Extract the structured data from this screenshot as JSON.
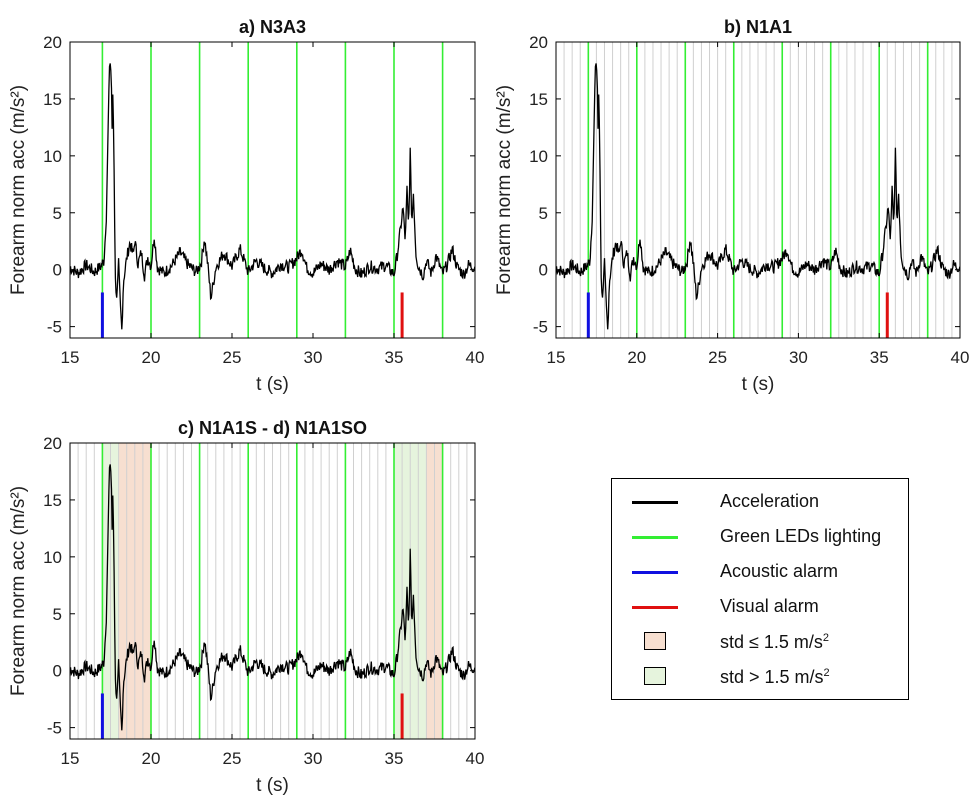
{
  "chart_data": [
    {
      "type": "line",
      "title": "a) N3A3",
      "xlabel": "t (s)",
      "ylabel": "Forearm norm acc (m/s²)",
      "xlim": [
        15,
        40
      ],
      "ylim": [
        -6,
        20
      ],
      "xticks": [
        15,
        20,
        25,
        30,
        35,
        40
      ],
      "yticks": [
        -5,
        0,
        5,
        10,
        15,
        20
      ],
      "green_led_times": [
        17,
        20,
        23,
        26,
        29,
        32,
        35,
        38
      ],
      "grey_lines": false,
      "acoustic_alarm_time": 17,
      "visual_alarm_time": 35.5,
      "shaded_regions": []
    },
    {
      "type": "line",
      "title": "b) N1A1",
      "xlabel": "t (s)",
      "ylabel": "Forearm norm acc (m/s²)",
      "xlim": [
        15,
        40
      ],
      "ylim": [
        -6,
        20
      ],
      "xticks": [
        15,
        20,
        25,
        30,
        35,
        40
      ],
      "yticks": [
        -5,
        0,
        5,
        10,
        15,
        20
      ],
      "green_led_times": [
        17,
        20,
        23,
        26,
        29,
        32,
        35,
        38
      ],
      "grey_lines": true,
      "acoustic_alarm_time": 17,
      "visual_alarm_time": 35.5,
      "shaded_regions": []
    },
    {
      "type": "line",
      "title": "c) N1A1S - d) N1A1SO",
      "xlabel": "t (s)",
      "ylabel": "Forearm norm acc (m/s²)",
      "xlim": [
        15,
        40
      ],
      "ylim": [
        -6,
        20
      ],
      "xticks": [
        15,
        20,
        25,
        30,
        35,
        40
      ],
      "yticks": [
        -5,
        0,
        5,
        10,
        15,
        20
      ],
      "green_led_times": [
        17,
        20,
        23,
        26,
        29,
        32,
        35,
        38
      ],
      "grey_lines": true,
      "acoustic_alarm_time": 17,
      "visual_alarm_time": 35.5,
      "shaded_regions": [
        {
          "x0": 17,
          "x1": 18,
          "kind": "green"
        },
        {
          "x0": 18,
          "x1": 20,
          "kind": "orange"
        },
        {
          "x0": 35,
          "x1": 37,
          "kind": "green"
        },
        {
          "x0": 37,
          "x1": 38,
          "kind": "orange"
        }
      ]
    }
  ],
  "acceleration_keypoints": [
    [
      15,
      0.2
    ],
    [
      15.5,
      -0.3
    ],
    [
      16,
      0.4
    ],
    [
      16.5,
      -0.2
    ],
    [
      16.9,
      0.3
    ],
    [
      17.1,
      0.8
    ],
    [
      17.25,
      5
    ],
    [
      17.35,
      12
    ],
    [
      17.45,
      18.7
    ],
    [
      17.55,
      17
    ],
    [
      17.6,
      12
    ],
    [
      17.65,
      16.3
    ],
    [
      17.72,
      9
    ],
    [
      17.8,
      -1
    ],
    [
      17.9,
      -2.5
    ],
    [
      18.0,
      0.5
    ],
    [
      18.1,
      -3
    ],
    [
      18.2,
      -5.3
    ],
    [
      18.3,
      -1
    ],
    [
      18.5,
      1
    ],
    [
      18.7,
      2.4
    ],
    [
      18.9,
      1.2
    ],
    [
      19.0,
      2.6
    ],
    [
      19.2,
      0.5
    ],
    [
      19.4,
      1.5
    ],
    [
      19.6,
      -0.5
    ],
    [
      19.8,
      1.1
    ],
    [
      20.0,
      0.3
    ],
    [
      20.2,
      3.0
    ],
    [
      20.4,
      0.2
    ],
    [
      20.8,
      -0.3
    ],
    [
      21.3,
      0.4
    ],
    [
      21.8,
      1.5
    ],
    [
      22.3,
      0.4
    ],
    [
      22.8,
      -0.2
    ],
    [
      23.1,
      0.6
    ],
    [
      23.3,
      2.8
    ],
    [
      23.5,
      0.5
    ],
    [
      23.7,
      -2.5
    ],
    [
      24.0,
      0.2
    ],
    [
      24.5,
      1.5
    ],
    [
      25,
      0.3
    ],
    [
      25.5,
      1.8
    ],
    [
      26,
      -0.2
    ],
    [
      26.5,
      0.8
    ],
    [
      27,
      0.1
    ],
    [
      27.5,
      -0.3
    ],
    [
      28,
      0.5
    ],
    [
      28.5,
      0.2
    ],
    [
      29.0,
      1.0
    ],
    [
      29.3,
      1.8
    ],
    [
      29.6,
      0.2
    ],
    [
      30,
      -0.3
    ],
    [
      30.5,
      0.5
    ],
    [
      31,
      0.0
    ],
    [
      31.5,
      0.8
    ],
    [
      32,
      0.2
    ],
    [
      32.3,
      1.7
    ],
    [
      32.6,
      0.1
    ],
    [
      33,
      -0.4
    ],
    [
      33.5,
      0.3
    ],
    [
      34,
      0.1
    ],
    [
      34.5,
      0.4
    ],
    [
      35,
      -0.4
    ],
    [
      35.2,
      1.3
    ],
    [
      35.4,
      3.5
    ],
    [
      35.55,
      5.5
    ],
    [
      35.7,
      2.5
    ],
    [
      35.8,
      7
    ],
    [
      35.9,
      3.5
    ],
    [
      36.0,
      10.4
    ],
    [
      36.1,
      4
    ],
    [
      36.2,
      6.8
    ],
    [
      36.35,
      1.5
    ],
    [
      36.5,
      0.3
    ],
    [
      36.8,
      -0.5
    ],
    [
      37,
      0.8
    ],
    [
      37.3,
      -0.3
    ],
    [
      37.6,
      1.2
    ],
    [
      38,
      -0.4
    ],
    [
      38.3,
      0.5
    ],
    [
      38.6,
      1.8
    ],
    [
      38.9,
      0.2
    ],
    [
      39.3,
      -0.4
    ],
    [
      39.6,
      0.4
    ],
    [
      40,
      0.2
    ]
  ],
  "legend": {
    "items": [
      {
        "label": "Acceleration",
        "kind": "line",
        "color": "#000000"
      },
      {
        "label": "Green LEDs lighting",
        "kind": "line",
        "color": "#33ee33"
      },
      {
        "label": "Acoustic alarm",
        "kind": "line",
        "color": "#1010e0"
      },
      {
        "label": "Visual alarm",
        "kind": "line",
        "color": "#e01010"
      },
      {
        "label": "std ≤ 1.5 m/s",
        "sup": "2",
        "kind": "box",
        "color": "#f7dfd0"
      },
      {
        "label": "std > 1.5 m/s",
        "sup": "2",
        "kind": "box",
        "color": "#e6f4dd"
      }
    ]
  },
  "colors": {
    "acceleration": "#000000",
    "green_led": "#33ee33",
    "grey_line": "#d0d0d0",
    "acoustic": "#1010e0",
    "visual": "#e01010",
    "shade_orange": "#f7dfd0",
    "shade_green": "#e6f4dd"
  }
}
